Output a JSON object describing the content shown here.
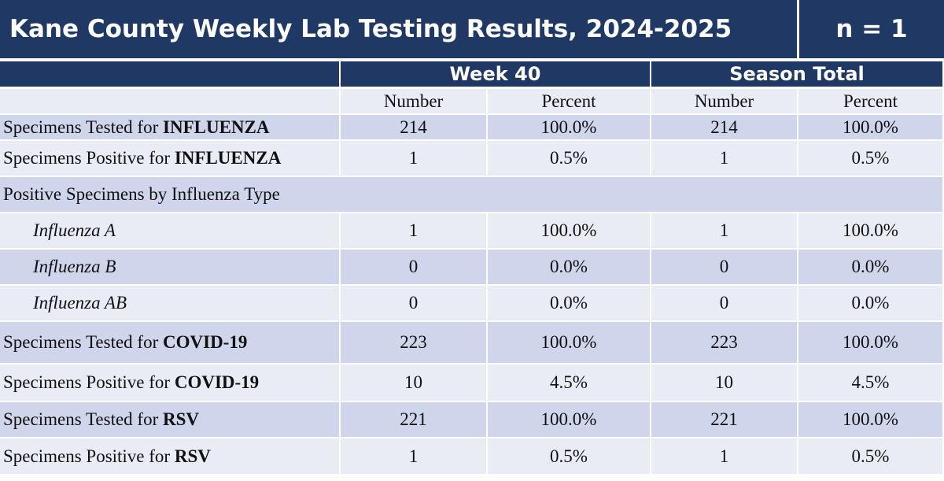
{
  "header": {
    "title": "Kane County Weekly Lab Testing Results, 2024-2025",
    "n": "n = 1"
  },
  "table": {
    "groups": [
      "Week 40",
      "Season Total"
    ],
    "columns": [
      "Number",
      "Percent",
      "Number",
      "Percent"
    ],
    "rows": [
      {
        "label": "Specimens Tested for",
        "emphasis": "INFLUENZA",
        "cells": [
          "214",
          "100.0%",
          "214",
          "100.0%"
        ]
      },
      {
        "label": "Specimens Positive for",
        "emphasis": "INFLUENZA",
        "cells": [
          "1",
          "0.5%",
          "1",
          "0.5%"
        ]
      },
      {
        "label": "Positive Specimens by Influenza Type"
      },
      {
        "label": "Influenza A",
        "italic": true,
        "cells": [
          "1",
          "100.0%",
          "1",
          "100.0%"
        ]
      },
      {
        "label": "Influenza B",
        "italic": true,
        "cells": [
          "0",
          "0.0%",
          "0",
          "0.0%"
        ]
      },
      {
        "label": "Influenza AB",
        "italic": true,
        "cells": [
          "0",
          "0.0%",
          "0",
          "0.0%"
        ]
      },
      {
        "label": "Specimens Tested for",
        "emphasis": "COVID-19",
        "cells": [
          "223",
          "100.0%",
          "223",
          "100.0%"
        ]
      },
      {
        "label": "Specimens Positive for",
        "emphasis": "COVID-19",
        "cells": [
          "10",
          "4.5%",
          "10",
          "4.5%"
        ]
      },
      {
        "label": "Specimens Tested for",
        "emphasis": "RSV",
        "cells": [
          "221",
          "100.0%",
          "221",
          "100.0%"
        ]
      },
      {
        "label": "Specimens Positive for",
        "emphasis": "RSV",
        "cells": [
          "1",
          "0.5%",
          "1",
          "0.5%"
        ]
      }
    ]
  }
}
